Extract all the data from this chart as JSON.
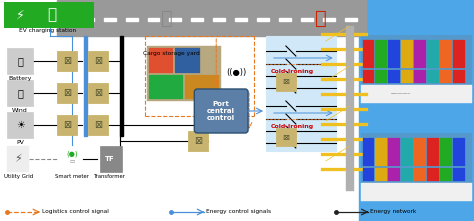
{
  "bg_left": "#ffffff",
  "bg_right": "#4da6e8",
  "road_color": "#999999",
  "legend_logistics_color": "#e87820",
  "legend_energy_control_color": "#4a90d9",
  "legend_energy_network_color": "#222222",
  "legend_labels": [
    "Logistics control signal",
    "Energy control signals",
    "Energy network"
  ],
  "port_box_color": "#5b7fa6",
  "port_box_text_color": "#ffffff",
  "cold_ironing_color": "#cc0000",
  "converter_color": "#c8b46e",
  "crane_color": "#f0c020",
  "crane_dark": "#c09000",
  "blue_bus": "#4a90d9",
  "switch_region_bg": "#d0e8f8",
  "switch_region_border": "#4a90d9"
}
